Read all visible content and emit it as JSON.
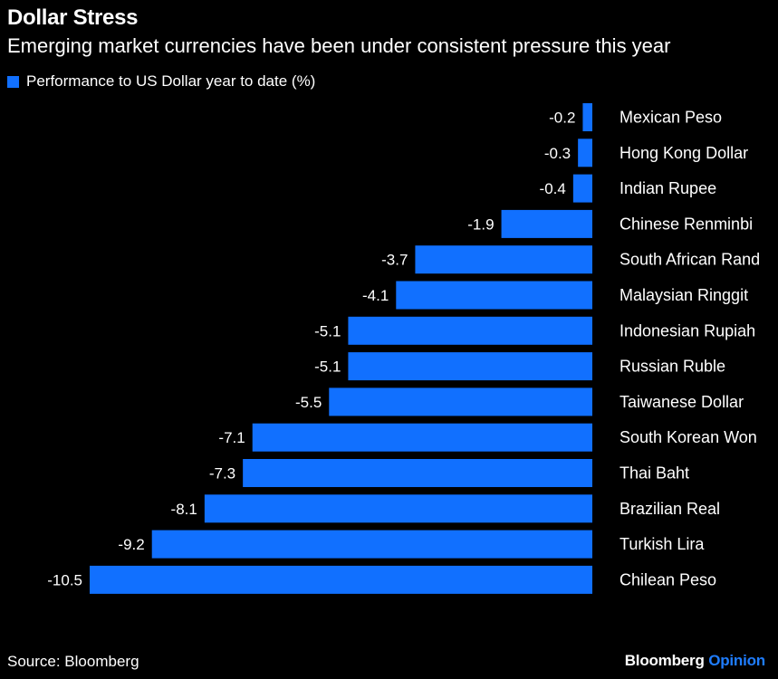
{
  "header": {
    "title": "Dollar Stress",
    "subtitle": "Emerging market currencies have been under consistent pressure this year"
  },
  "legend": {
    "label": "Performance to US Dollar year to date (%)",
    "swatch_color": "#1170ff"
  },
  "footer": {
    "source": "Source: Bloomberg",
    "brand_name": "Bloomberg",
    "brand_suffix": "Opinion"
  },
  "chart_data": {
    "type": "bar",
    "orientation": "horizontal",
    "categories": [
      "Mexican Peso",
      "Hong Kong Dollar",
      "Indian Rupee",
      "Chinese Renminbi",
      "South African Rand",
      "Malaysian Ringgit",
      "Indonesian Rupiah",
      "Russian Ruble",
      "Taiwanese Dollar",
      "South Korean Won",
      "Thai Baht",
      "Brazilian Real",
      "Turkish Lira",
      "Chilean Peso"
    ],
    "values": [
      -0.2,
      -0.3,
      -0.4,
      -1.9,
      -3.7,
      -4.1,
      -5.1,
      -5.1,
      -5.5,
      -7.1,
      -7.3,
      -8.1,
      -9.2,
      -10.5
    ],
    "data_labels": [
      "-0.2",
      "-0.3",
      "-0.4",
      "-1.9",
      "-3.7",
      "-4.1",
      "-5.1",
      "-5.1",
      "-5.5",
      "-7.1",
      "-7.3",
      "-8.1",
      "-9.2",
      "-10.5"
    ],
    "series_name": "Performance to US Dollar year to date (%)",
    "bar_color": "#1170ff",
    "xlim": [
      -10.5,
      0
    ],
    "grid": false,
    "legend_position": "top-left"
  }
}
